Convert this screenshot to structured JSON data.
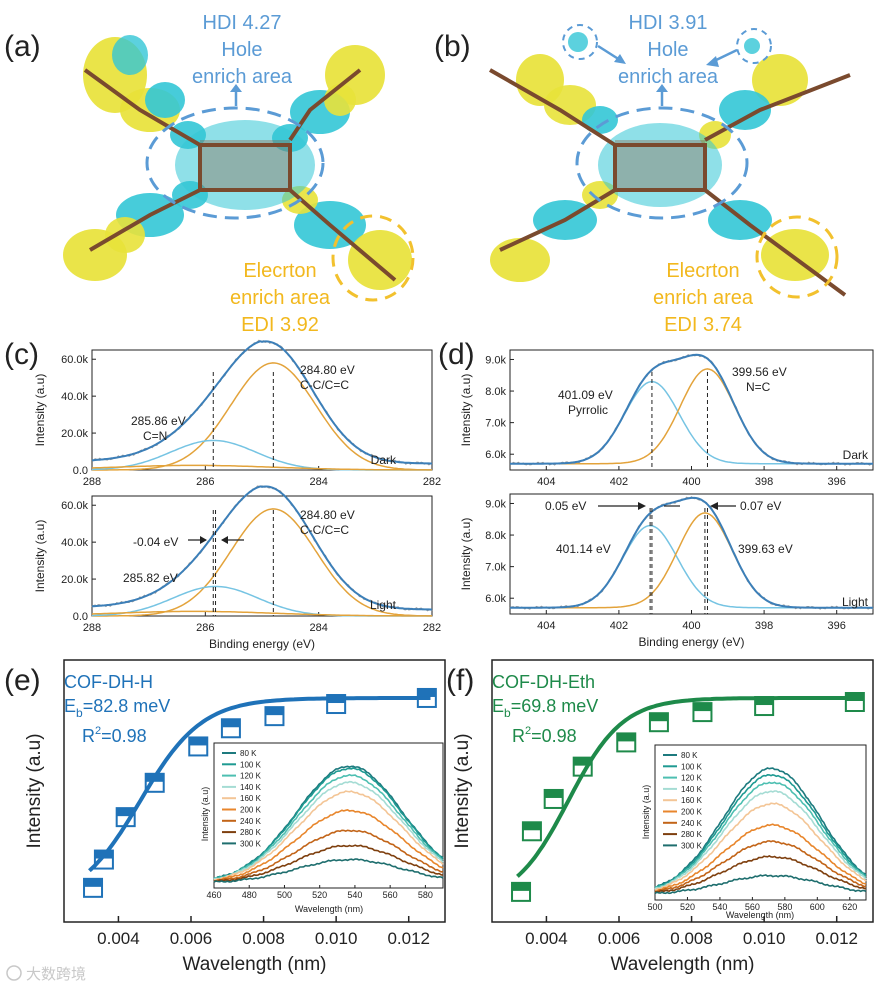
{
  "panels": {
    "a": {
      "label": "(a)",
      "hdi": "HDI 4.27",
      "hole1": "Hole",
      "hole2": "enrich area",
      "elec1": "Elecrton",
      "elec2": "enrich area",
      "edi": "EDI 3.92"
    },
    "b": {
      "label": "(b)",
      "hdi": "HDI 3.91",
      "hole1": "Hole",
      "hole2": "enrich area",
      "elec1": "Elecrton",
      "elec2": "enrich area",
      "edi": "EDI 3.74"
    },
    "c": {
      "label": "(c)",
      "peak_main": "284.80 eV",
      "peak_main_sub": "C-C/C=C",
      "peak_cn": "285.86 eV",
      "peak_cn_sub": "C=N",
      "dark": "Dark",
      "light_main": "284.80 eV",
      "light_main_sub": "C-C/C=C",
      "light_shift": "-0.04 eV",
      "light_cn": "285.82 eV",
      "light": "Light"
    },
    "d": {
      "label": "(d)",
      "peak_pyr": "401.09 eV",
      "peak_pyr_sub": "Pyrrolic",
      "peak_nc": "399.56 eV",
      "peak_nc_sub": "N=C",
      "dark": "Dark",
      "shift_left": "0.05 eV",
      "shift_right": "0.07 eV",
      "light_pyr": "401.14 eV",
      "light_nc": "399.63 eV",
      "light": "Light"
    },
    "e": {
      "label": "(e)",
      "name": "COF-DH-H",
      "eb_prefix": "E",
      "eb_sub": "b",
      "eb_value": "=82.8 meV",
      "r2_prefix": "R",
      "r2_sup": "2",
      "r2_value": "=0.98",
      "inset_xlabel": "Wavelength (nm)",
      "inset_ylabel": "Intensity (a.u)"
    },
    "f": {
      "label": "(f)",
      "name": "COF-DH-Eth",
      "eb_prefix": "E",
      "eb_sub": "b",
      "eb_value": "=69.8 meV",
      "r2_prefix": "R",
      "r2_sup": "2",
      "r2_value": "=0.98",
      "inset_xlabel": "Wavelength (nm)",
      "inset_ylabel": "Intensity (a.u)"
    }
  },
  "watermark": "大数跨境",
  "chart_data": [
    {
      "id": "c",
      "type": "line",
      "xlabel": "Binding energy (eV)",
      "ylabel": "Intensity (a.u)",
      "xlim": [
        288,
        282
      ],
      "ylim": [
        0,
        65000
      ],
      "xticks": [
        "288",
        "286",
        "284",
        "282"
      ],
      "yticks": [
        "0.0",
        "20.0k",
        "40.0k",
        "60.0k"
      ],
      "subplots": [
        {
          "condition": "Dark",
          "components": [
            {
              "name": "C-C/C=C",
              "center": 284.8,
              "height": 58000,
              "width": 0.75
            },
            {
              "name": "C=N",
              "center": 285.86,
              "height": 16000,
              "width": 0.75
            },
            {
              "name": "minor",
              "center": 286.2,
              "height": 2500,
              "width": 1.4
            }
          ],
          "baseline": 3000,
          "markers_eV": [
            285.86,
            284.8
          ]
        },
        {
          "condition": "Light",
          "components": [
            {
              "name": "C-C/C=C",
              "center": 284.8,
              "height": 58000,
              "width": 0.75
            },
            {
              "name": "C=N",
              "center": 285.82,
              "height": 16000,
              "width": 0.75
            },
            {
              "name": "minor",
              "center": 286.2,
              "height": 2500,
              "width": 1.4
            }
          ],
          "baseline": 3000,
          "markers_eV": [
            285.86,
            285.82,
            284.8
          ]
        }
      ]
    },
    {
      "id": "d",
      "type": "line",
      "xlabel": "Binding energy (eV)",
      "ylabel": "Intensity (a.u)",
      "xlim": [
        405,
        395
      ],
      "ylim": [
        5500,
        9300
      ],
      "xticks": [
        "404",
        "402",
        "400",
        "398",
        "396"
      ],
      "yticks": [
        "6.0k",
        "7.0k",
        "8.0k",
        "9.0k"
      ],
      "subplots": [
        {
          "condition": "Dark",
          "components": [
            {
              "name": "Pyrrolic",
              "center": 401.09,
              "height": 2600,
              "width": 0.75
            },
            {
              "name": "N=C",
              "center": 399.56,
              "height": 3000,
              "width": 0.75
            }
          ],
          "baseline": 5700,
          "markers_eV": [
            401.09,
            399.56
          ]
        },
        {
          "condition": "Light",
          "components": [
            {
              "name": "Pyrrolic",
              "center": 401.14,
              "height": 2600,
              "width": 0.75
            },
            {
              "name": "N=C",
              "center": 399.63,
              "height": 3000,
              "width": 0.75
            }
          ],
          "baseline": 5700,
          "markers_eV": [
            401.14,
            401.09,
            399.63,
            399.56
          ]
        }
      ]
    },
    {
      "id": "e",
      "type": "scatter",
      "xlabel": "Wavelength (nm)",
      "ylabel": "Intensity (a.u)",
      "xlim": [
        0.0025,
        0.013
      ],
      "ylim": [
        0,
        1
      ],
      "xticks": [
        "0.004",
        "0.006",
        "0.008",
        "0.010",
        "0.012"
      ],
      "x": [
        0.0033,
        0.0036,
        0.0042,
        0.005,
        0.0062,
        0.0071,
        0.0083,
        0.01,
        0.0125
      ],
      "y": [
        0.08,
        0.22,
        0.43,
        0.6,
        0.78,
        0.87,
        0.93,
        0.99,
        1.02
      ],
      "fit": {
        "A": 1.0,
        "Eb_meV": 82.8
      },
      "inset": {
        "xlabel": "Wavelength (nm)",
        "ylabel": "Intensity (a.u)",
        "xlim": [
          460,
          590
        ],
        "xticks": [
          "460",
          "480",
          "500",
          "520",
          "540",
          "560",
          "580"
        ],
        "center": 537,
        "series": [
          {
            "name": "80 K",
            "color": "#1d7a7e",
            "peak": 1.0
          },
          {
            "name": "100 K",
            "color": "#1e9a92",
            "peak": 0.98
          },
          {
            "name": "120 K",
            "color": "#4dbfb1",
            "peak": 0.92
          },
          {
            "name": "140 K",
            "color": "#a5dcd4",
            "peak": 0.86
          },
          {
            "name": "160 K",
            "color": "#f3c596",
            "peak": 0.78
          },
          {
            "name": "200 K",
            "color": "#e8862c",
            "peak": 0.62
          },
          {
            "name": "240 K",
            "color": "#c26418",
            "peak": 0.45
          },
          {
            "name": "280 K",
            "color": "#7e3f0e",
            "peak": 0.32
          },
          {
            "name": "300 K",
            "color": "#1e6e6e",
            "peak": 0.2
          }
        ]
      }
    },
    {
      "id": "f",
      "type": "scatter",
      "xlabel": "Wavelength (nm)",
      "ylabel": "Intensity (a.u)",
      "xlim": [
        0.0025,
        0.013
      ],
      "ylim": [
        0,
        1
      ],
      "xticks": [
        "0.004",
        "0.006",
        "0.008",
        "0.010",
        "0.012"
      ],
      "x": [
        0.0033,
        0.0036,
        0.0042,
        0.005,
        0.0062,
        0.0071,
        0.0083,
        0.01,
        0.0125
      ],
      "y": [
        0.06,
        0.36,
        0.52,
        0.68,
        0.8,
        0.9,
        0.95,
        0.98,
        1.0
      ],
      "fit": {
        "A": 1.0,
        "Eb_meV": 69.8
      },
      "inset": {
        "xlabel": "Wavelength (nm)",
        "ylabel": "Intensity (a.u)",
        "xlim": [
          500,
          630
        ],
        "xticks": [
          "500",
          "520",
          "540",
          "560",
          "580",
          "600",
          "620"
        ],
        "center": 572,
        "series": [
          {
            "name": "80 K",
            "color": "#1d7a7e",
            "peak": 1.0
          },
          {
            "name": "100 K",
            "color": "#1e9a92",
            "peak": 0.95
          },
          {
            "name": "120 K",
            "color": "#4dbfb1",
            "peak": 0.89
          },
          {
            "name": "140 K",
            "color": "#a5dcd4",
            "peak": 0.82
          },
          {
            "name": "160 K",
            "color": "#f3c596",
            "peak": 0.72
          },
          {
            "name": "200 K",
            "color": "#e8862c",
            "peak": 0.55
          },
          {
            "name": "240 K",
            "color": "#c26418",
            "peak": 0.42
          },
          {
            "name": "280 K",
            "color": "#7e3f0e",
            "peak": 0.3
          },
          {
            "name": "300 K",
            "color": "#1e6e6e",
            "peak": 0.15
          }
        ]
      }
    }
  ],
  "colors": {
    "hole_blue": "#5b9bd5",
    "elec_yellow": "#f2c12e",
    "fit_blue": "#3c7fb8",
    "comp_orange": "#e3a33b",
    "comp_light": "#76c4e3",
    "e_blue": "#1f72b8",
    "f_green": "#1e8a4a"
  }
}
